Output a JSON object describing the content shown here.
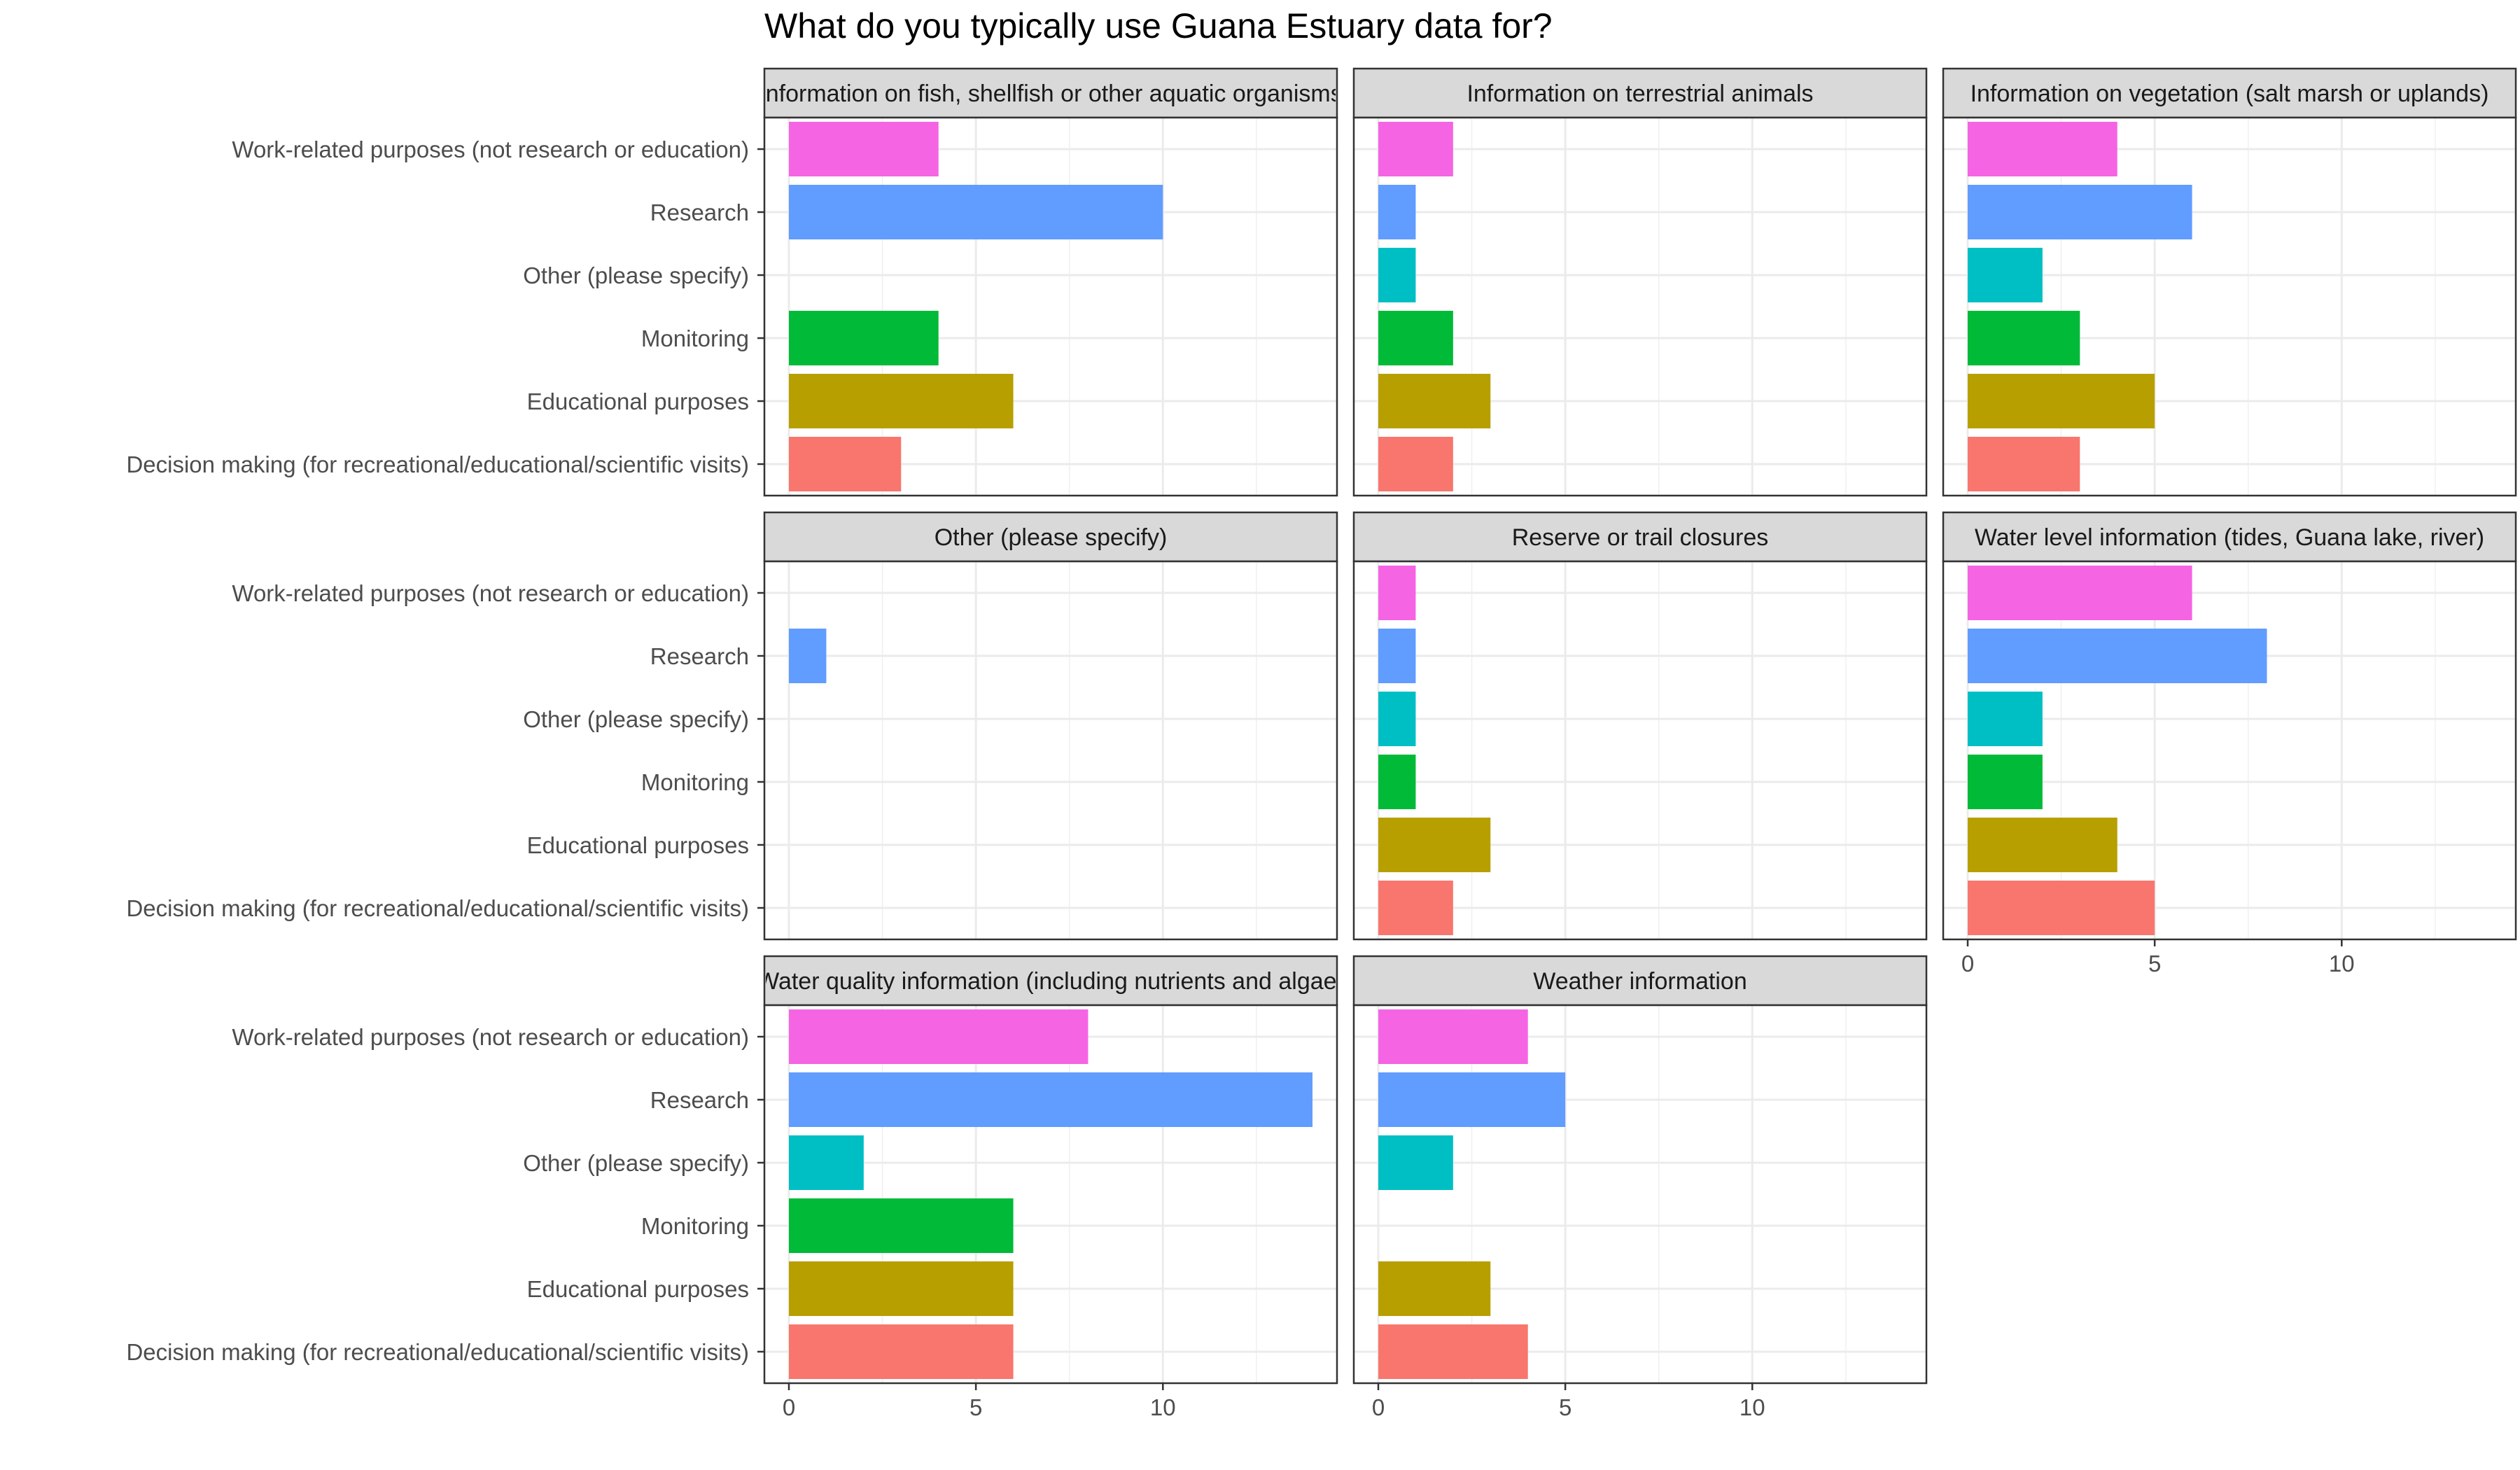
{
  "chart_data": {
    "type": "bar",
    "orientation": "horizontal",
    "title": "What do you typically use Guana Estuary data for?",
    "xlabel": "",
    "ylabel": "",
    "xlim": [
      0,
      14
    ],
    "x_ticks": [
      0,
      5,
      10
    ],
    "grid": true,
    "legend": "none",
    "categories": [
      "Work-related purposes (not research or education)",
      "Research",
      "Other (please specify)",
      "Monitoring",
      "Educational purposes",
      "Decision making (for recreational/educational/scientific visits)"
    ],
    "category_colors": [
      "#F564E3",
      "#619CFF",
      "#00BFC4",
      "#00BA38",
      "#B79F00",
      "#F8766D"
    ],
    "panels": [
      {
        "title": "Information on fish, shellfish or other aquatic organisms",
        "values": [
          4,
          10,
          0,
          4,
          6,
          3
        ]
      },
      {
        "title": "Information on terrestrial animals",
        "values": [
          2,
          1,
          1,
          2,
          3,
          2
        ]
      },
      {
        "title": "Information on vegetation (salt marsh or uplands)",
        "values": [
          4,
          6,
          2,
          3,
          5,
          3
        ]
      },
      {
        "title": "Other (please specify)",
        "values": [
          0,
          1,
          0,
          0,
          0,
          0
        ]
      },
      {
        "title": "Reserve or trail closures",
        "values": [
          1,
          1,
          1,
          1,
          3,
          2
        ]
      },
      {
        "title": "Water level information (tides, Guana lake, river)",
        "values": [
          6,
          8,
          2,
          2,
          4,
          5
        ]
      },
      {
        "title": "Water quality information (including nutrients and algae)",
        "values": [
          8,
          14,
          2,
          6,
          6,
          6
        ]
      },
      {
        "title": "Weather information",
        "values": [
          4,
          5,
          2,
          0,
          3,
          4
        ]
      }
    ]
  }
}
